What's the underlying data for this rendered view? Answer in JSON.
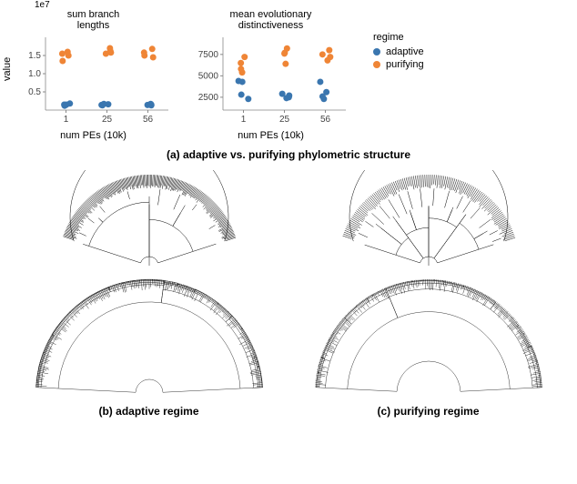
{
  "chart1": {
    "title": "sum branch\nlengths",
    "ylabel": "value",
    "xlabel": "num PEs (10k)",
    "yscale": "1e7",
    "xticks": [
      "1",
      "25",
      "56"
    ],
    "yticks": [
      "0.5",
      "1.0",
      "1.5"
    ],
    "ylim": [
      0,
      2.0
    ],
    "points": {
      "adaptive": {
        "x": [
          1,
          1,
          1,
          1,
          25,
          25,
          25,
          25,
          56,
          56,
          56,
          56
        ],
        "y": [
          0.12,
          0.15,
          0.18,
          0.15,
          0.13,
          0.16,
          0.14,
          0.17,
          0.14,
          0.15,
          0.17,
          0.13
        ]
      },
      "purifying": {
        "x": [
          1,
          1,
          1,
          1,
          25,
          25,
          25,
          25,
          56,
          56,
          56,
          56
        ],
        "y": [
          1.35,
          1.55,
          1.5,
          1.6,
          1.58,
          1.7,
          1.55,
          1.62,
          1.5,
          1.68,
          1.58,
          1.45
        ]
      }
    }
  },
  "chart2": {
    "title": "mean evolutionary\ndistinctiveness",
    "xlabel": "num PEs (10k)",
    "xticks": [
      "1",
      "25",
      "56"
    ],
    "yticks": [
      "2500",
      "5000",
      "7500"
    ],
    "ylim": [
      1000,
      9500
    ],
    "points": {
      "adaptive": {
        "x": [
          1,
          1,
          1,
          1,
          25,
          25,
          25,
          25,
          56,
          56,
          56,
          56
        ],
        "y": [
          2300,
          2800,
          4300,
          4400,
          2400,
          2700,
          2900,
          2500,
          2300,
          2600,
          3100,
          4300
        ]
      },
      "purifying": {
        "x": [
          1,
          1,
          1,
          1,
          25,
          25,
          25,
          25,
          56,
          56,
          56,
          56
        ],
        "y": [
          5400,
          5800,
          6500,
          7200,
          6400,
          7600,
          7700,
          8200,
          6800,
          7200,
          8000,
          7500
        ]
      }
    }
  },
  "colors": {
    "adaptive": "#3a76af",
    "purifying": "#ef8536",
    "axis": "#888888",
    "text": "#444444"
  },
  "legend": {
    "title": "regime",
    "items": [
      "adaptive",
      "purifying"
    ]
  },
  "captions": {
    "a": "(a) adaptive vs. purifying phylometric structure",
    "b": "(b) adaptive regime",
    "c": "(c) purifying regime"
  }
}
